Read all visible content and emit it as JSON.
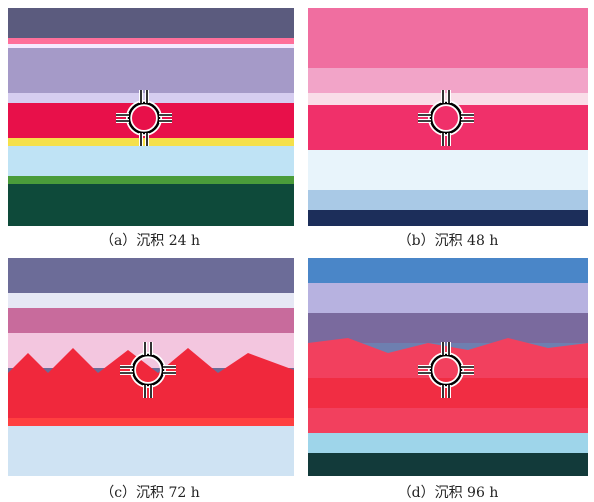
{
  "panels": [
    {
      "caption": "（a）沉积 24 h"
    },
    {
      "caption": "（b）沉积 48 h"
    },
    {
      "caption": "（c）沉积 72 h"
    },
    {
      "caption": "（d）沉积 96 h"
    }
  ]
}
